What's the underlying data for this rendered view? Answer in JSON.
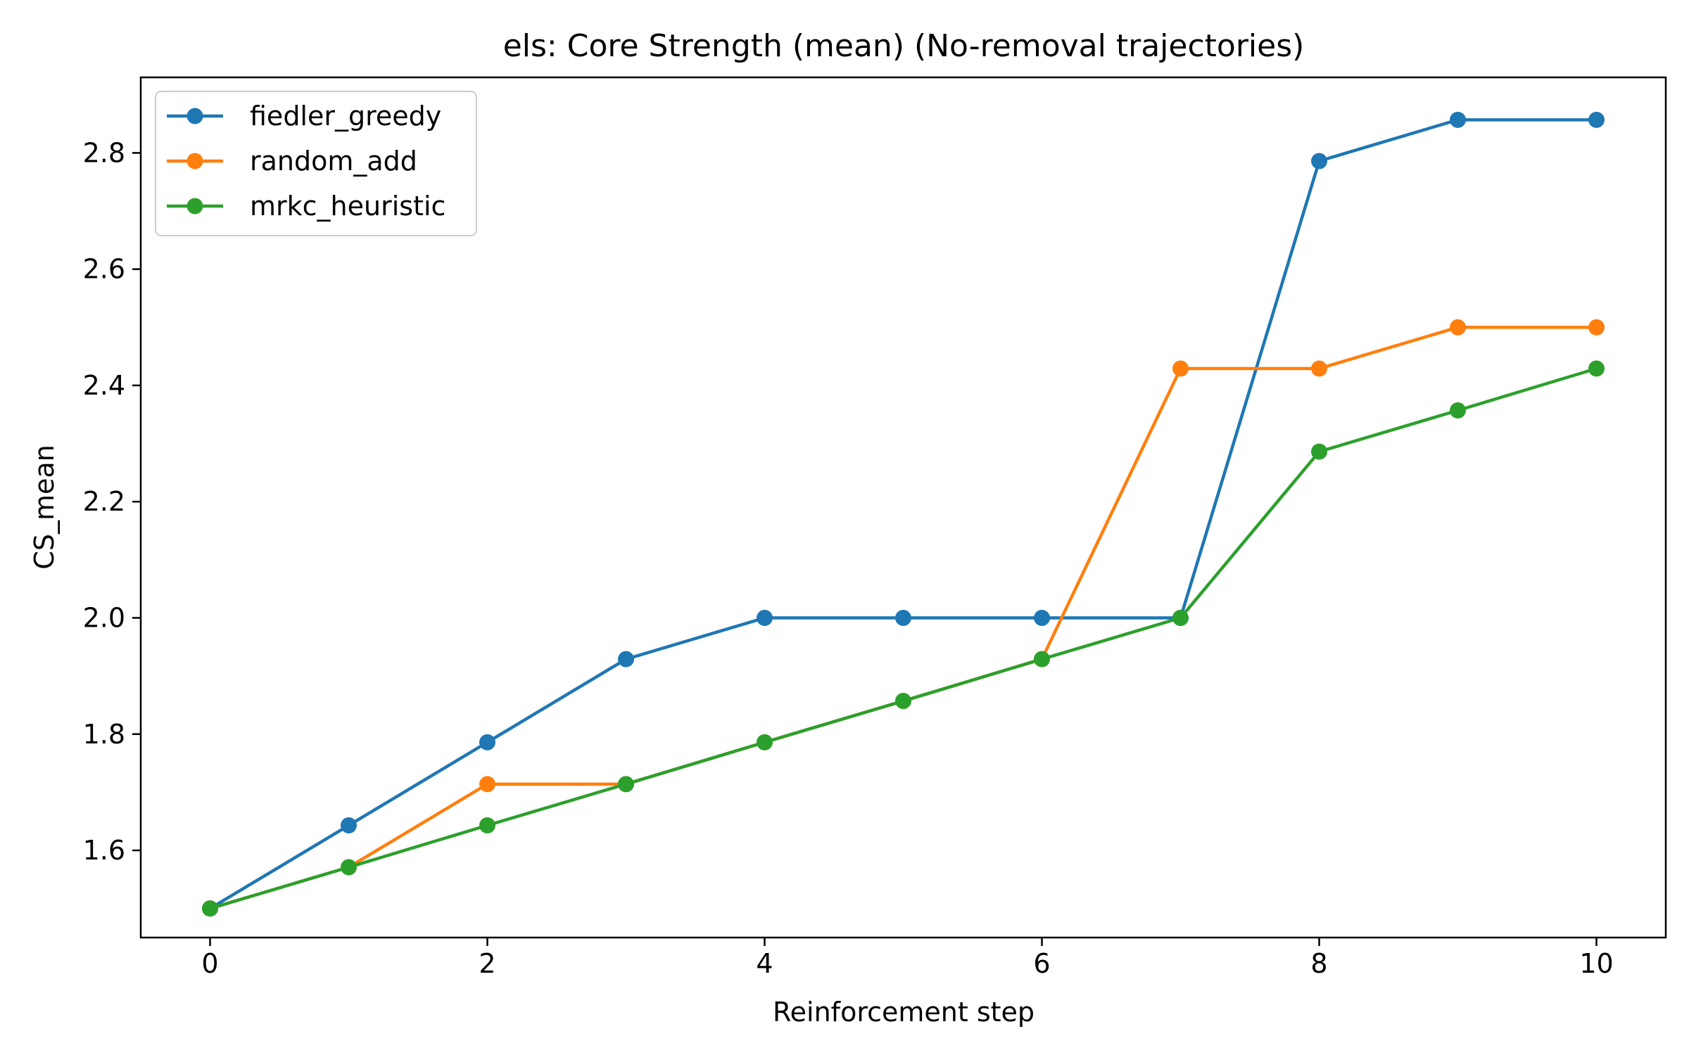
{
  "chart_data": {
    "type": "line",
    "title": "els: Core Strength (mean) (No-removal trajectories)",
    "xlabel": "Reinforcement step",
    "ylabel": "CS_mean",
    "x": [
      0,
      1,
      2,
      3,
      4,
      5,
      6,
      7,
      8,
      9,
      10
    ],
    "xlim": [
      -0.5,
      10.5
    ],
    "ylim": [
      1.45,
      2.93
    ],
    "xticks": [
      0,
      2,
      4,
      6,
      8,
      10
    ],
    "xtick_labels": [
      "0",
      "2",
      "4",
      "6",
      "8",
      "10"
    ],
    "yticks": [
      1.6,
      1.8,
      2.0,
      2.2,
      2.4,
      2.6,
      2.8
    ],
    "ytick_labels": [
      "1.6",
      "1.8",
      "2.0",
      "2.2",
      "2.4",
      "2.6",
      "2.8"
    ],
    "grid": false,
    "legend_position": "top-left",
    "series": [
      {
        "name": "fiedler_greedy",
        "color": "#1f77b4",
        "values": [
          1.5,
          1.643,
          1.786,
          1.929,
          2.0,
          2.0,
          2.0,
          2.0,
          2.786,
          2.857,
          2.857
        ]
      },
      {
        "name": "random_add",
        "color": "#ff7f0e",
        "values": [
          1.5,
          1.571,
          1.714,
          1.714,
          1.786,
          1.857,
          1.929,
          2.429,
          2.429,
          2.5,
          2.5
        ]
      },
      {
        "name": "mrkc_heuristic",
        "color": "#2ca02c",
        "values": [
          1.5,
          1.571,
          1.643,
          1.714,
          1.786,
          1.857,
          1.929,
          2.0,
          2.286,
          2.357,
          2.429
        ]
      }
    ]
  }
}
